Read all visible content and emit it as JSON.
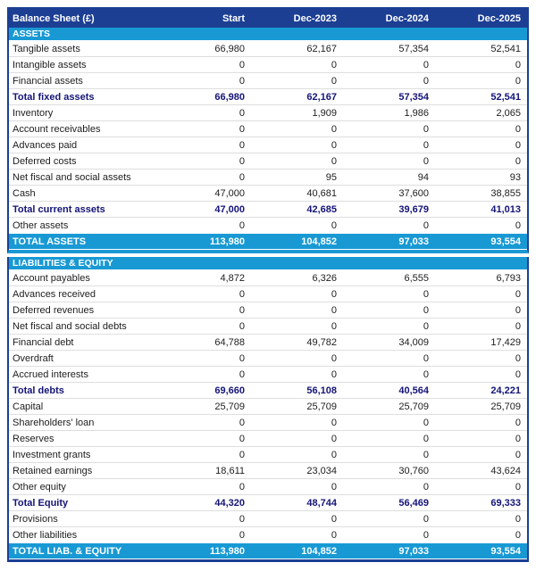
{
  "colors": {
    "header_navy": "#1c3f94",
    "section_blue": "#1899d4",
    "total_text_navy": "#141478",
    "row_separator": "#dedede",
    "body_text": "#1d1d1d"
  },
  "header": {
    "title": "Balance Sheet (£)",
    "columns": [
      "Start",
      "Dec-2023",
      "Dec-2024",
      "Dec-2025"
    ]
  },
  "sections": [
    {
      "name": "ASSETS",
      "rows": [
        {
          "label": "Tangible assets",
          "style": "normal",
          "values": [
            "66,980",
            "62,167",
            "57,354",
            "52,541"
          ]
        },
        {
          "label": "Intangible assets",
          "style": "normal",
          "values": [
            "0",
            "0",
            "0",
            "0"
          ]
        },
        {
          "label": "Financial assets",
          "style": "normal",
          "values": [
            "0",
            "0",
            "0",
            "0"
          ]
        },
        {
          "label": "Total fixed assets",
          "style": "bold",
          "values": [
            "66,980",
            "62,167",
            "57,354",
            "52,541"
          ]
        },
        {
          "label": "Inventory",
          "style": "normal",
          "values": [
            "0",
            "1,909",
            "1,986",
            "2,065"
          ]
        },
        {
          "label": "Account receivables",
          "style": "normal",
          "values": [
            "0",
            "0",
            "0",
            "0"
          ]
        },
        {
          "label": "Advances paid",
          "style": "normal",
          "values": [
            "0",
            "0",
            "0",
            "0"
          ]
        },
        {
          "label": "Deferred costs",
          "style": "normal",
          "values": [
            "0",
            "0",
            "0",
            "0"
          ]
        },
        {
          "label": "Net fiscal and social assets",
          "style": "normal",
          "values": [
            "0",
            "95",
            "94",
            "93"
          ]
        },
        {
          "label": "Cash",
          "style": "normal",
          "values": [
            "47,000",
            "40,681",
            "37,600",
            "38,855"
          ]
        },
        {
          "label": "Total current assets",
          "style": "bold",
          "values": [
            "47,000",
            "42,685",
            "39,679",
            "41,013"
          ]
        },
        {
          "label": "Other assets",
          "style": "normal",
          "values": [
            "0",
            "0",
            "0",
            "0"
          ]
        }
      ],
      "total": {
        "label": "TOTAL ASSETS",
        "values": [
          "113,980",
          "104,852",
          "97,033",
          "93,554"
        ]
      }
    },
    {
      "name": "LIABILITIES & EQUITY",
      "rows": [
        {
          "label": "Account payables",
          "style": "normal",
          "values": [
            "4,872",
            "6,326",
            "6,555",
            "6,793"
          ]
        },
        {
          "label": "Advances received",
          "style": "normal",
          "values": [
            "0",
            "0",
            "0",
            "0"
          ]
        },
        {
          "label": "Deferred revenues",
          "style": "normal",
          "values": [
            "0",
            "0",
            "0",
            "0"
          ]
        },
        {
          "label": "Net fiscal and social debts",
          "style": "normal",
          "values": [
            "0",
            "0",
            "0",
            "0"
          ]
        },
        {
          "label": "Financial debt",
          "style": "normal",
          "values": [
            "64,788",
            "49,782",
            "34,009",
            "17,429"
          ]
        },
        {
          "label": "Overdraft",
          "style": "normal",
          "values": [
            "0",
            "0",
            "0",
            "0"
          ]
        },
        {
          "label": "Accrued interests",
          "style": "normal",
          "values": [
            "0",
            "0",
            "0",
            "0"
          ]
        },
        {
          "label": "Total debts",
          "style": "bold",
          "values": [
            "69,660",
            "56,108",
            "40,564",
            "24,221"
          ]
        },
        {
          "label": "Capital",
          "style": "normal",
          "values": [
            "25,709",
            "25,709",
            "25,709",
            "25,709"
          ]
        },
        {
          "label": "Shareholders' loan",
          "style": "normal",
          "values": [
            "0",
            "0",
            "0",
            "0"
          ]
        },
        {
          "label": "Reserves",
          "style": "normal",
          "values": [
            "0",
            "0",
            "0",
            "0"
          ]
        },
        {
          "label": "Investment grants",
          "style": "normal",
          "values": [
            "0",
            "0",
            "0",
            "0"
          ]
        },
        {
          "label": "Retained earnings",
          "style": "normal",
          "values": [
            "18,611",
            "23,034",
            "30,760",
            "43,624"
          ]
        },
        {
          "label": "Other equity",
          "style": "normal",
          "values": [
            "0",
            "0",
            "0",
            "0"
          ]
        },
        {
          "label": "Total Equity",
          "style": "bold",
          "values": [
            "44,320",
            "48,744",
            "56,469",
            "69,333"
          ]
        },
        {
          "label": "Provisions",
          "style": "normal",
          "values": [
            "0",
            "0",
            "0",
            "0"
          ]
        },
        {
          "label": "Other liabilities",
          "style": "normal",
          "values": [
            "0",
            "0",
            "0",
            "0"
          ]
        }
      ],
      "total": {
        "label": "TOTAL LIAB. & EQUITY",
        "values": [
          "113,980",
          "104,852",
          "97,033",
          "93,554"
        ]
      }
    }
  ]
}
